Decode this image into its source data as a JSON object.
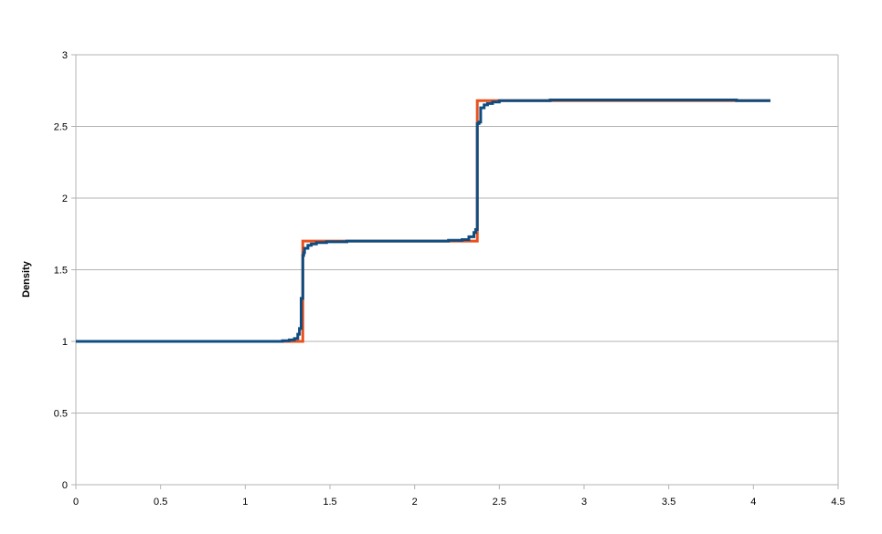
{
  "chart_data": {
    "type": "line",
    "title": "",
    "xlabel": "",
    "ylabel": "Density",
    "xlim": [
      0,
      4.5
    ],
    "ylim": [
      0,
      3
    ],
    "x_ticks": [
      "0",
      "0.5",
      "1",
      "1.5",
      "2",
      "2.5",
      "3",
      "3.5",
      "4",
      "4.5"
    ],
    "y_ticks": [
      "0",
      "0.5",
      "1",
      "1.5",
      "2",
      "2.5",
      "3"
    ],
    "grid": "horizontal",
    "legend": "none",
    "series": [
      {
        "color": "#e8501e",
        "x": [
          0,
          1.34,
          1.34,
          2.37,
          2.37,
          4.1
        ],
        "y": [
          1,
          1,
          1.7,
          1.7,
          2.68,
          2.68
        ]
      },
      {
        "color": "#0f4d80",
        "x": [
          0,
          1.18,
          1.22,
          1.26,
          1.29,
          1.31,
          1.32,
          1.33,
          1.34,
          1.345,
          1.35,
          1.37,
          1.39,
          1.42,
          1.48,
          1.6,
          1.8,
          2.0,
          2.2,
          2.28,
          2.32,
          2.35,
          2.36,
          2.37,
          2.375,
          2.38,
          2.39,
          2.41,
          2.43,
          2.46,
          2.5,
          2.6,
          2.8,
          3.2,
          3.6,
          3.9,
          4.1
        ],
        "y": [
          1.0,
          1.0,
          1.005,
          1.01,
          1.02,
          1.05,
          1.09,
          1.3,
          1.6,
          1.62,
          1.65,
          1.67,
          1.68,
          1.69,
          1.695,
          1.7,
          1.7,
          1.7,
          1.705,
          1.71,
          1.73,
          1.76,
          1.78,
          2.52,
          2.52,
          2.53,
          2.63,
          2.65,
          2.66,
          2.67,
          2.68,
          2.68,
          2.685,
          2.685,
          2.685,
          2.68,
          2.68
        ]
      }
    ]
  }
}
